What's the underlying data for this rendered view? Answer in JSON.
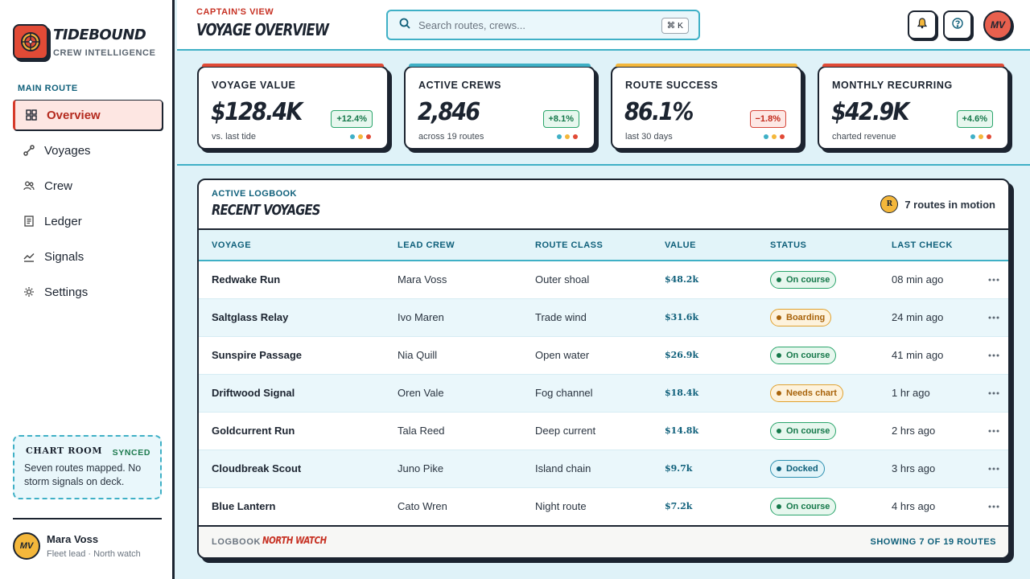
{
  "brand": {
    "name": "TIDEBOUND",
    "subtitle": "CREW INTELLIGENCE"
  },
  "sidebar": {
    "heading": "MAIN ROUTE",
    "items": [
      {
        "label": "Overview",
        "icon": "grid-icon",
        "active": true
      },
      {
        "label": "Voyages",
        "icon": "route-icon",
        "active": false
      },
      {
        "label": "Crew",
        "icon": "people-icon",
        "active": false
      },
      {
        "label": "Ledger",
        "icon": "document-icon",
        "active": false
      },
      {
        "label": "Signals",
        "icon": "trend-icon",
        "active": false
      },
      {
        "label": "Settings",
        "icon": "gear-icon",
        "active": false
      }
    ],
    "chart_room": {
      "title": "CHART ROOM",
      "badge": "SYNCED",
      "text": "Seven routes mapped. No storm signals on deck."
    },
    "user": {
      "initials": "MV",
      "name": "Mara Voss",
      "role": "Fleet lead · North watch"
    }
  },
  "header": {
    "eyebrow": "CAPTAIN'S VIEW",
    "title": "VOYAGE OVERVIEW",
    "search_placeholder": "Search routes, crews...",
    "shortcut": "⌘ K",
    "avatar_initials": "MV"
  },
  "kpis": [
    {
      "label": "VOYAGE VALUE",
      "value": "$128.4K",
      "sub": "vs. last tide",
      "delta": "+12.4%",
      "trend": "up",
      "accent": "#e14a36"
    },
    {
      "label": "ACTIVE CREWS",
      "value": "2,846",
      "sub": "across 19 routes",
      "delta": "+8.1%",
      "trend": "up",
      "accent": "#3fb0c6"
    },
    {
      "label": "ROUTE SUCCESS",
      "value": "86.1%",
      "sub": "last 30 days",
      "delta": "−1.8%",
      "trend": "down",
      "accent": "#f4b73b"
    },
    {
      "label": "MONTHLY RECURRING",
      "value": "$42.9K",
      "sub": "charted revenue",
      "delta": "+4.6%",
      "trend": "up",
      "accent": "#e14a36"
    }
  ],
  "dot_colors": [
    "#3fb0c6",
    "#f4b73b",
    "#e14a36"
  ],
  "panel": {
    "eyebrow": "ACTIVE LOGBOOK",
    "title": "RECENT VOYAGES",
    "motion_badge": "R",
    "motion_text": "7 routes in motion",
    "columns": [
      "VOYAGE",
      "LEAD CREW",
      "ROUTE CLASS",
      "VALUE",
      "STATUS",
      "LAST CHECK"
    ],
    "rows": [
      {
        "voyage": "Redwake Run",
        "crew": "Mara Voss",
        "route": "Outer shoal",
        "value": "$48.2k",
        "status": "On course",
        "status_color": "green",
        "last": "08 min ago"
      },
      {
        "voyage": "Saltglass Relay",
        "crew": "Ivo Maren",
        "route": "Trade wind",
        "value": "$31.6k",
        "status": "Boarding",
        "status_color": "amber",
        "last": "24 min ago"
      },
      {
        "voyage": "Sunspire Passage",
        "crew": "Nia Quill",
        "route": "Open water",
        "value": "$26.9k",
        "status": "On course",
        "status_color": "green",
        "last": "41 min ago"
      },
      {
        "voyage": "Driftwood Signal",
        "crew": "Oren Vale",
        "route": "Fog channel",
        "value": "$18.4k",
        "status": "Needs chart",
        "status_color": "amber",
        "last": "1 hr ago"
      },
      {
        "voyage": "Goldcurrent Run",
        "crew": "Tala Reed",
        "route": "Deep current",
        "value": "$14.8k",
        "status": "On course",
        "status_color": "green",
        "last": "2 hrs ago"
      },
      {
        "voyage": "Cloudbreak Scout",
        "crew": "Juno Pike",
        "route": "Island chain",
        "value": "$9.7k",
        "status": "Docked",
        "status_color": "blue",
        "last": "3 hrs ago"
      },
      {
        "voyage": "Blue Lantern",
        "crew": "Cato Wren",
        "route": "Night route",
        "value": "$7.2k",
        "status": "On course",
        "status_color": "green",
        "last": "4 hrs ago"
      }
    ],
    "footer_label": "LOGBOOK",
    "footer_watch": "NORTH WATCH",
    "footer_count": "SHOWING 7 OF 19 ROUTES"
  }
}
